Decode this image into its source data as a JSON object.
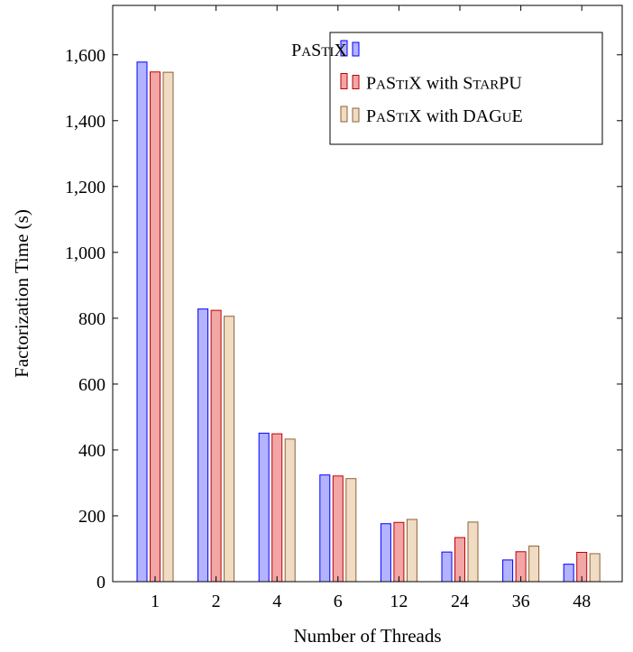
{
  "chart_data": {
    "type": "bar",
    "xlabel": "Number of Threads",
    "ylabel": "Factorization Time (s)",
    "categories": [
      "1",
      "2",
      "4",
      "6",
      "12",
      "24",
      "36",
      "48"
    ],
    "ylim": [
      0,
      1750
    ],
    "yticks": [
      0,
      200,
      400,
      600,
      800,
      1000,
      1200,
      1400,
      1600
    ],
    "ytick_labels": [
      "0",
      "200",
      "400",
      "600",
      "800",
      "1,000",
      "1,200",
      "1,400",
      "1,600"
    ],
    "grid": false,
    "legend_position": "top-right",
    "series": [
      {
        "name": "PaStiX",
        "values": [
          1578,
          828,
          451,
          324,
          176,
          90,
          66,
          53
        ],
        "fill": "#b3b3ff",
        "stroke": "#0000ff"
      },
      {
        "name": "PaStiX with StarPU",
        "values": [
          1548,
          824,
          449,
          321,
          180,
          134,
          91,
          89
        ],
        "fill": "#f2a6a6",
        "stroke": "#bf0000"
      },
      {
        "name": "PaStiX with DAGuE",
        "values": [
          1547,
          806,
          433,
          313,
          189,
          181,
          108,
          85
        ],
        "fill": "#f0dcc2",
        "stroke": "#8c6239"
      }
    ]
  }
}
